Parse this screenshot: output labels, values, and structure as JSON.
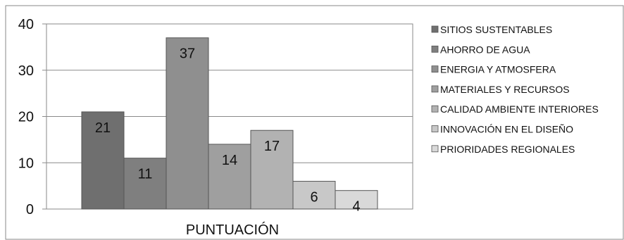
{
  "chart_data": {
    "type": "bar",
    "title": "",
    "xlabel": "PUNTUACIÓN",
    "ylabel": "",
    "ylim": [
      0,
      40
    ],
    "yticks": [
      0,
      10,
      20,
      30,
      40
    ],
    "grid": true,
    "legend_position": "right",
    "categories": [
      "PUNTUACIÓN"
    ],
    "series": [
      {
        "name": "SITIOS SUSTENTABLES",
        "values": [
          21
        ],
        "color": "#6f6f6f"
      },
      {
        "name": "AHORRO DE AGUA",
        "values": [
          11
        ],
        "color": "#7f7f7f"
      },
      {
        "name": "ENERGIA Y ATMOSFERA",
        "values": [
          37
        ],
        "color": "#8f8f8f"
      },
      {
        "name": "MATERIALES Y RECURSOS",
        "values": [
          14
        ],
        "color": "#9f9f9f"
      },
      {
        "name": "CALIDAD AMBIENTE INTERIORES",
        "values": [
          17
        ],
        "color": "#b2b2b2"
      },
      {
        "name": "INNOVACIÓN EN EL DISEÑO",
        "values": [
          6
        ],
        "color": "#c8c8c8"
      },
      {
        "name": "PRIORIDADES REGIONALES",
        "values": [
          4
        ],
        "color": "#d9d9d9"
      }
    ]
  }
}
